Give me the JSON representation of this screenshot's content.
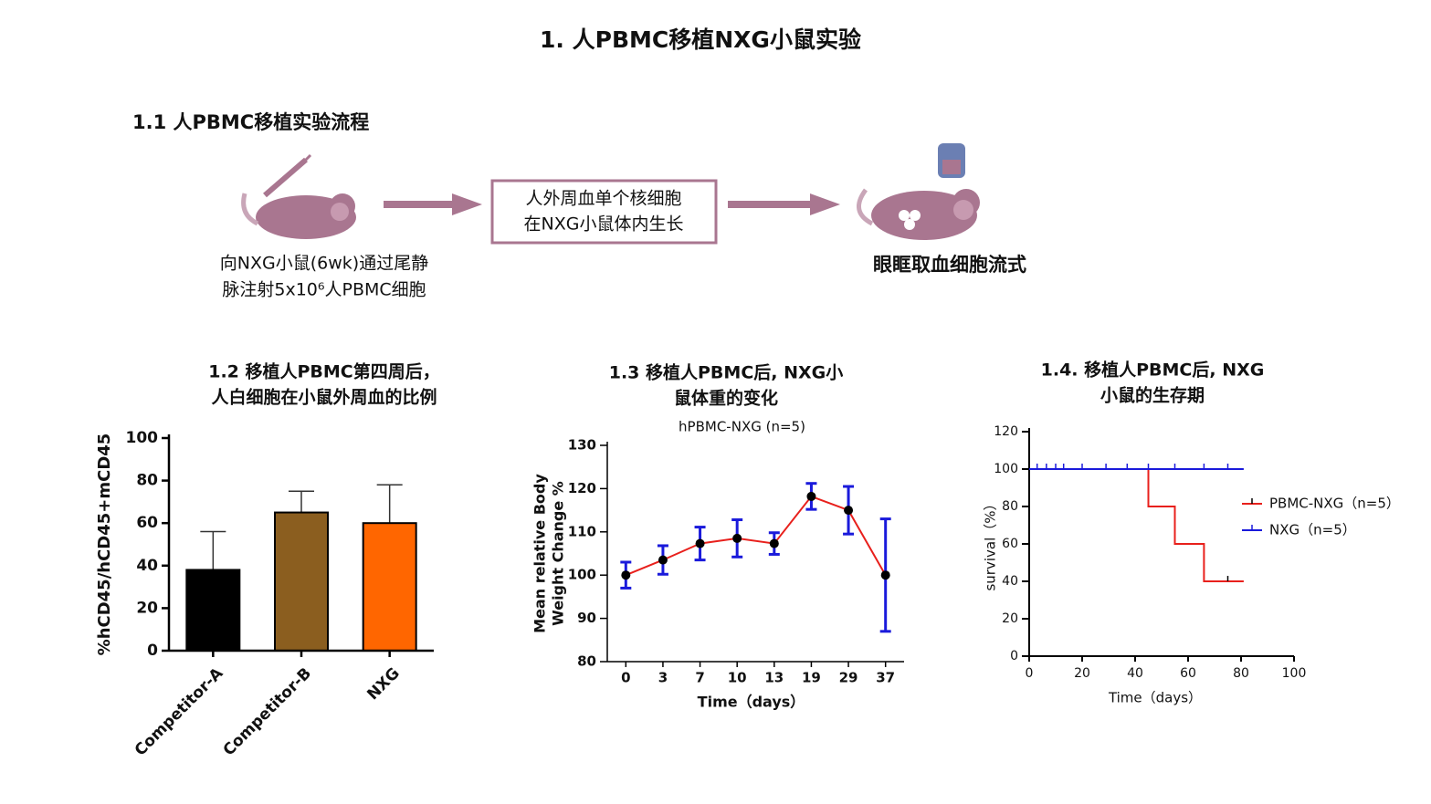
{
  "title": "1. 人PBMC移植NXG小鼠实验",
  "section": "1.1 人PBMC移植实验流程",
  "flow": {
    "step1": [
      "向NXG小鼠(6wk)通过尾静",
      "脉注射5x10⁶人PBMC细胞"
    ],
    "step2": [
      "人外周血单个核细胞",
      "在NXG小鼠体内生长"
    ],
    "step3": "眼眶取血细胞流式"
  },
  "chart_data": [
    {
      "type": "bar",
      "title": [
        "1.2 移植人PBMC第四周后，",
        "人白细胞在小鼠外周血的比例"
      ],
      "ylabel": "%hCD45/hCD45+mCD45",
      "categories": [
        "Competitor-A",
        "Competitor-B",
        "NXG"
      ],
      "values": [
        38,
        65,
        60
      ],
      "errors": [
        18,
        10,
        18
      ],
      "colors": [
        "#000000",
        "#8b5e1f",
        "#ff6600"
      ],
      "ylim": [
        0,
        100
      ],
      "yticks": [
        0,
        20,
        40,
        60,
        80,
        100
      ]
    },
    {
      "type": "line",
      "title": [
        "1.3 移植人PBMC后, NXG小",
        "鼠体重的变化"
      ],
      "subtitle": "hPBMC-NXG (n=5)",
      "xlabel": "Time（days）",
      "ylabel": [
        "Mean relative Body",
        "Weight Change %"
      ],
      "categories": [
        "0",
        "3",
        "7",
        "10",
        "13",
        "19",
        "29",
        "37"
      ],
      "values": [
        100,
        103.5,
        107.3,
        108.5,
        107.3,
        118.2,
        115,
        100
      ],
      "errors": [
        3,
        3.3,
        3.8,
        4.3,
        2.5,
        3,
        5.5,
        13
      ],
      "color": "#e8201c",
      "error_color": "#1a1adb",
      "ylim": [
        80,
        130
      ],
      "yticks": [
        80,
        90,
        100,
        110,
        120,
        130
      ]
    },
    {
      "type": "step",
      "title": [
        "1.4. 移植人PBMC后, NXG",
        "小鼠的生存期"
      ],
      "xlabel": "Time（days）",
      "ylabel": "survival（%）",
      "series": [
        {
          "name": "PBMC-NXG（n=5）",
          "color": "#e8201c",
          "x": [
            0,
            45,
            45,
            55,
            55,
            66,
            66,
            81
          ],
          "values": [
            100,
            100,
            80,
            80,
            60,
            60,
            40,
            40
          ],
          "censored": [
            75
          ]
        },
        {
          "name": "NXG（n=5）",
          "color": "#1a1adb",
          "x": [
            0,
            81
          ],
          "values": [
            100,
            100
          ],
          "censored": [
            3,
            6.5,
            10,
            13,
            20,
            29,
            37,
            45,
            55,
            66,
            75
          ]
        }
      ],
      "xlim": [
        0,
        100
      ],
      "xticks": [
        0,
        20,
        40,
        60,
        80,
        100
      ],
      "ylim": [
        0,
        120
      ],
      "yticks": [
        0,
        20,
        40,
        60,
        80,
        100,
        120
      ],
      "legend": "right"
    }
  ]
}
